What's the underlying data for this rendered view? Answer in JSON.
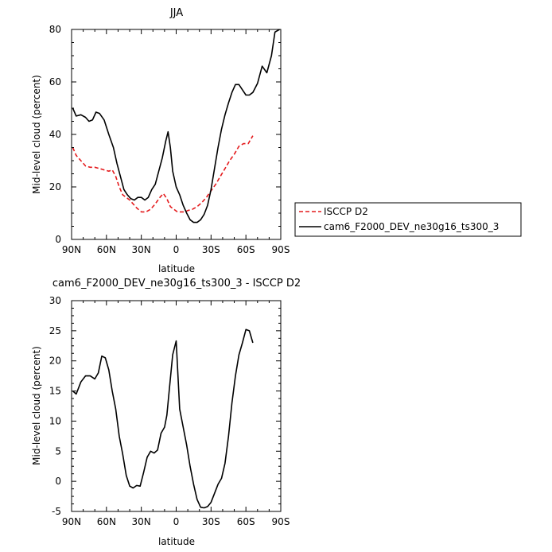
{
  "chart_data": [
    {
      "type": "line",
      "title": "JJA",
      "xlabel": "latitude",
      "ylabel": "Mid-level cloud (percent)",
      "x_ticks": [
        "90N",
        "60N",
        "30N",
        "0",
        "30S",
        "60S",
        "90S"
      ],
      "x_tick_values": [
        90,
        60,
        30,
        0,
        -30,
        -60,
        -90
      ],
      "xlim": [
        90,
        -90
      ],
      "ylim": [
        0,
        80
      ],
      "y_ticks": [
        0,
        20,
        40,
        60,
        80
      ],
      "legend_position": "right",
      "series": [
        {
          "name": "ISCCP D2",
          "color": "#e41a1c",
          "dash": "dashed",
          "x": [
            89,
            86,
            82,
            78,
            74,
            70,
            66,
            62,
            58,
            55,
            52,
            49,
            46,
            43,
            40,
            37,
            34,
            30,
            26,
            22,
            18,
            14,
            11,
            8,
            5,
            2,
            -1,
            -4,
            -7,
            -10,
            -14,
            -18,
            -22,
            -26,
            -30,
            -34,
            -38,
            -42,
            -46,
            -50,
            -54,
            -58,
            -62,
            -64,
            -66
          ],
          "y": [
            35,
            32,
            30,
            28,
            27.5,
            27.5,
            27,
            26.5,
            26,
            26.5,
            24,
            20,
            17,
            16,
            15,
            13.5,
            12,
            10.5,
            10.5,
            11.5,
            13.5,
            16,
            17.5,
            15.5,
            12.5,
            11.5,
            10.5,
            10.5,
            10.5,
            11,
            11.5,
            12.5,
            14,
            16,
            18.5,
            21,
            24,
            27,
            30,
            32.5,
            35.5,
            36.5,
            36.5,
            38,
            39.5
          ]
        },
        {
          "name": "cam6_F2000_DEV_ne30g16_ts300_3",
          "color": "#000000",
          "dash": "solid",
          "x": [
            89,
            86,
            82,
            78,
            75,
            72,
            69,
            66,
            62,
            58,
            54,
            51,
            48,
            45,
            42,
            39,
            36,
            33,
            30,
            27,
            24,
            21,
            18,
            15,
            12,
            9,
            7,
            5,
            3,
            0,
            -3,
            -6,
            -9,
            -12,
            -15,
            -18,
            -21,
            -24,
            -27,
            -30,
            -33,
            -36,
            -39,
            -42,
            -45,
            -48,
            -51,
            -54,
            -57,
            -60,
            -63,
            -66,
            -70,
            -74,
            -78,
            -82,
            -85,
            -89
          ],
          "y": [
            50,
            47,
            47.5,
            46.5,
            45,
            45.5,
            48.5,
            48,
            45.5,
            40,
            35,
            29,
            24,
            19,
            17,
            15.5,
            15,
            16,
            16,
            15,
            16,
            19,
            21,
            26,
            31,
            37.5,
            41,
            35,
            26,
            20,
            17,
            13,
            10,
            7.5,
            6.5,
            6.5,
            7.5,
            9.5,
            13,
            19,
            27,
            35,
            42,
            47.5,
            52,
            56,
            59,
            59,
            57,
            55,
            55,
            56,
            59.5,
            66,
            63.5,
            70,
            79,
            80
          ]
        }
      ]
    },
    {
      "type": "line",
      "title": "cam6_F2000_DEV_ne30g16_ts300_3 - ISCCP D2",
      "xlabel": "latitude",
      "ylabel": "Mid-level cloud (percent)",
      "x_ticks": [
        "90N",
        "60N",
        "30N",
        "0",
        "30S",
        "60S",
        "90S"
      ],
      "x_tick_values": [
        90,
        60,
        30,
        0,
        -30,
        -60,
        -90
      ],
      "xlim": [
        90,
        -90
      ],
      "ylim": [
        -5,
        30
      ],
      "y_ticks": [
        -5,
        0,
        5,
        10,
        15,
        20,
        25,
        30
      ],
      "series": [
        {
          "color": "#000000",
          "dash": "solid",
          "x": [
            89,
            86,
            82,
            78,
            74,
            70,
            67,
            64,
            61,
            58,
            55,
            52,
            49,
            46,
            43,
            40,
            37,
            34,
            31,
            28,
            25,
            22,
            19,
            16,
            13,
            10,
            8,
            6,
            3,
            0,
            -3,
            -6,
            -9,
            -12,
            -15,
            -18,
            -21,
            -24,
            -27,
            -30,
            -33,
            -36,
            -39,
            -42,
            -45,
            -48,
            -51,
            -54,
            -57,
            -60,
            -63,
            -66
          ],
          "y": [
            15,
            14.5,
            16.5,
            17.5,
            17.5,
            17,
            18,
            20.8,
            20.5,
            18.5,
            15,
            12,
            7.5,
            4.5,
            1,
            -0.8,
            -1.1,
            -0.7,
            -0.8,
            1.5,
            4,
            5,
            4.7,
            5.2,
            8,
            9,
            11,
            15,
            21,
            23.3,
            12,
            9,
            6,
            2.5,
            -0.5,
            -3,
            -4.3,
            -4.4,
            -4.2,
            -3.5,
            -2,
            -0.5,
            0.5,
            3,
            7.5,
            13,
            17.5,
            21,
            23,
            25.2,
            25,
            23
          ]
        }
      ]
    }
  ]
}
